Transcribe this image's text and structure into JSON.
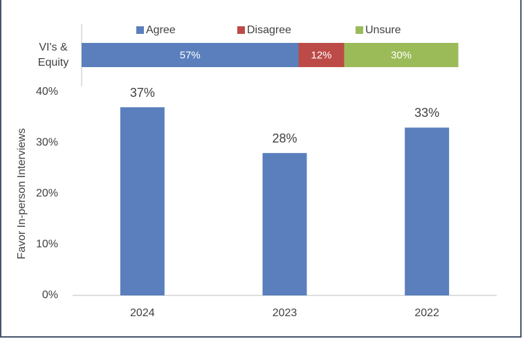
{
  "chart_data": [
    {
      "type": "stacked_bar_h",
      "categories": [
        "VI's & Equity"
      ],
      "series": [
        {
          "name": "Agree",
          "color": "#5a7fbc",
          "values": [
            57
          ],
          "value_labels": [
            "57%"
          ]
        },
        {
          "name": "Disagree",
          "color": "#bc4b48",
          "values": [
            12
          ],
          "value_labels": [
            "12%"
          ]
        },
        {
          "name": "Unsure",
          "color": "#9bbb59",
          "values": [
            30
          ],
          "value_labels": [
            "30%"
          ]
        }
      ],
      "xlim": [
        0,
        100
      ],
      "legend": "top"
    },
    {
      "type": "bar",
      "y_label": "Favor In-person Interviews",
      "categories": [
        "2024",
        "2023",
        "2022"
      ],
      "values": [
        37,
        28,
        33
      ],
      "value_labels": [
        "37%",
        "28%",
        "33%"
      ],
      "color": "#5a7fbc",
      "ylim": [
        0,
        40
      ],
      "yticks": [
        {
          "value": 0,
          "label": "0%"
        },
        {
          "value": 10,
          "label": "10%"
        },
        {
          "value": 20,
          "label": "20%"
        },
        {
          "value": 30,
          "label": "30%"
        },
        {
          "value": 40,
          "label": "40%"
        }
      ]
    }
  ]
}
